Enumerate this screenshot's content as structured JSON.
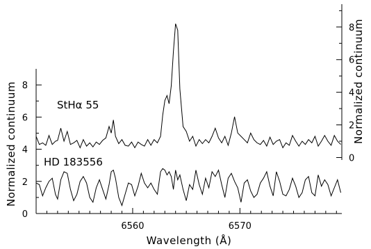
{
  "chart_data": {
    "type": "line",
    "xlabel": "Wavelength (Å)",
    "x_ticks": [
      6560,
      6570
    ],
    "xlim": [
      6551,
      6579.5
    ],
    "left_axis": {
      "label": "Normalized continuum",
      "ticks": [
        0,
        2,
        4,
        6,
        8
      ],
      "tick_labels": [
        "0",
        "2",
        "4",
        "6",
        "8"
      ],
      "ylim": [
        0,
        9
      ]
    },
    "right_axis": {
      "label": "Normalized continuum",
      "ticks": [
        0,
        2,
        4,
        6,
        8
      ],
      "tick_labels": [
        "0",
        "2",
        "4",
        "6",
        "8"
      ],
      "ylim": [
        -0.15,
        9.4
      ]
    },
    "annotations": {
      "star_label": "StHα 55",
      "ref_label": "HD 183556"
    },
    "series": [
      {
        "name": "StHα 55",
        "axis": "right",
        "x": [
          6551.0,
          6551.3,
          6551.6,
          6551.9,
          6552.2,
          6552.5,
          6552.8,
          6553.0,
          6553.3,
          6553.6,
          6553.9,
          6554.2,
          6554.5,
          6554.8,
          6555.1,
          6555.4,
          6555.7,
          6556.0,
          6556.3,
          6556.6,
          6556.9,
          6557.2,
          6557.5,
          6557.8,
          6558.0,
          6558.2,
          6558.4,
          6558.7,
          6559.0,
          6559.3,
          6559.6,
          6559.9,
          6560.2,
          6560.5,
          6560.8,
          6561.1,
          6561.4,
          6561.7,
          6562.0,
          6562.3,
          6562.6,
          6562.8,
          6563.0,
          6563.2,
          6563.4,
          6563.6,
          6563.8,
          6564.0,
          6564.2,
          6564.4,
          6564.7,
          6565.0,
          6565.3,
          6565.6,
          6565.9,
          6566.2,
          6566.5,
          6566.8,
          6567.1,
          6567.4,
          6567.7,
          6568.0,
          6568.3,
          6568.6,
          6568.9,
          6569.2,
          6569.5,
          6569.8,
          6570.1,
          6570.4,
          6570.7,
          6571.0,
          6571.3,
          6571.6,
          6571.9,
          6572.2,
          6572.5,
          6572.8,
          6573.1,
          6573.4,
          6573.7,
          6574.0,
          6574.3,
          6574.6,
          6574.9,
          6575.2,
          6575.5,
          6575.8,
          6576.1,
          6576.4,
          6576.7,
          6577.0,
          6577.3,
          6577.6,
          6577.9,
          6578.2,
          6578.5,
          6578.8,
          6579.1,
          6579.4
        ],
        "values": [
          1.3,
          0.8,
          0.9,
          0.75,
          1.35,
          0.8,
          1.0,
          1.05,
          1.8,
          1.0,
          1.6,
          0.8,
          0.9,
          1.05,
          0.6,
          1.1,
          0.7,
          0.9,
          0.65,
          0.95,
          0.8,
          1.05,
          1.2,
          1.9,
          1.5,
          2.3,
          1.3,
          0.85,
          1.1,
          0.75,
          0.7,
          0.95,
          0.6,
          0.95,
          0.8,
          0.7,
          1.1,
          0.75,
          1.1,
          0.9,
          1.3,
          2.6,
          3.5,
          3.8,
          3.3,
          4.4,
          6.5,
          8.2,
          7.8,
          4.2,
          1.9,
          1.6,
          1.0,
          1.3,
          0.7,
          1.1,
          0.85,
          1.1,
          0.9,
          1.3,
          1.8,
          1.2,
          0.9,
          1.3,
          0.75,
          1.5,
          2.5,
          1.5,
          1.3,
          1.1,
          0.9,
          1.5,
          1.1,
          0.9,
          0.8,
          1.05,
          0.7,
          1.25,
          0.8,
          1.0,
          1.1,
          0.6,
          0.9,
          0.75,
          1.35,
          1.0,
          0.7,
          1.0,
          0.8,
          1.1,
          0.9,
          1.3,
          0.7,
          1.0,
          1.35,
          1.0,
          0.75,
          1.35,
          1.0,
          0.8
        ]
      },
      {
        "name": "HD 183556",
        "axis": "left",
        "x": [
          6551.0,
          6551.3,
          6551.6,
          6551.9,
          6552.2,
          6552.5,
          6552.8,
          6553.0,
          6553.3,
          6553.6,
          6553.9,
          6554.2,
          6554.5,
          6554.8,
          6555.1,
          6555.4,
          6555.7,
          6556.0,
          6556.3,
          6556.6,
          6556.9,
          6557.2,
          6557.5,
          6557.8,
          6558.0,
          6558.2,
          6558.4,
          6558.7,
          6559.0,
          6559.3,
          6559.6,
          6559.9,
          6560.2,
          6560.5,
          6560.8,
          6561.1,
          6561.4,
          6561.7,
          6562.0,
          6562.3,
          6562.6,
          6562.8,
          6563.0,
          6563.2,
          6563.4,
          6563.6,
          6563.8,
          6564.0,
          6564.2,
          6564.4,
          6564.7,
          6565.0,
          6565.3,
          6565.6,
          6565.9,
          6566.2,
          6566.5,
          6566.8,
          6567.1,
          6567.4,
          6567.7,
          6568.0,
          6568.3,
          6568.6,
          6568.9,
          6569.2,
          6569.5,
          6569.8,
          6570.1,
          6570.4,
          6570.7,
          6571.0,
          6571.3,
          6571.6,
          6571.9,
          6572.2,
          6572.5,
          6572.8,
          6573.1,
          6573.4,
          6573.7,
          6574.0,
          6574.3,
          6574.6,
          6574.9,
          6575.2,
          6575.5,
          6575.8,
          6576.1,
          6576.4,
          6576.7,
          6577.0,
          6577.3,
          6577.6,
          6577.9,
          6578.2,
          6578.5,
          6578.8,
          6579.1,
          6579.4
        ],
        "values": [
          1.9,
          1.8,
          1.1,
          1.6,
          2.0,
          2.2,
          1.2,
          0.9,
          2.1,
          2.6,
          2.5,
          1.5,
          0.8,
          1.2,
          2.0,
          2.3,
          1.9,
          1.0,
          0.7,
          1.6,
          2.1,
          1.5,
          0.9,
          1.8,
          2.6,
          2.7,
          2.2,
          1.0,
          0.5,
          1.2,
          1.9,
          1.8,
          1.1,
          1.7,
          2.5,
          1.9,
          1.6,
          1.9,
          1.5,
          1.2,
          2.6,
          2.8,
          2.7,
          2.4,
          2.6,
          2.3,
          1.5,
          2.7,
          2.1,
          2.4,
          1.5,
          0.8,
          1.8,
          1.5,
          2.7,
          1.8,
          1.2,
          2.2,
          1.6,
          2.6,
          2.3,
          2.7,
          1.8,
          1.0,
          2.2,
          2.5,
          2.0,
          1.6,
          0.7,
          1.9,
          2.1,
          1.4,
          1.0,
          1.2,
          1.9,
          2.2,
          2.6,
          1.7,
          1.1,
          2.6,
          2.0,
          1.2,
          1.1,
          1.5,
          2.2,
          1.7,
          1.0,
          1.3,
          2.1,
          2.3,
          1.3,
          1.1,
          2.4,
          1.7,
          2.1,
          1.8,
          1.1,
          1.6,
          2.1,
          1.3
        ]
      }
    ]
  }
}
